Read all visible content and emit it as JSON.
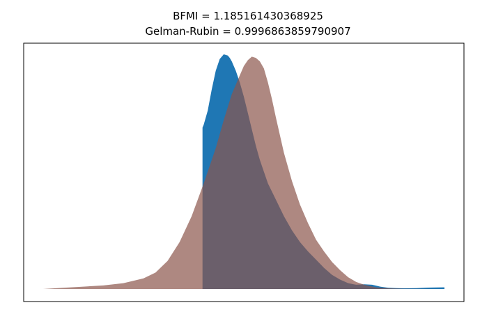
{
  "chart_data": {
    "type": "area",
    "title_lines": [
      "BFMI = 1.185161430368925",
      "Gelman-Rubin = 0.9996863859790907"
    ],
    "xlabel": "",
    "ylabel": "",
    "axis_ticks_visible": false,
    "grid": false,
    "legend": "none",
    "xlim": [
      0,
      1
    ],
    "ylim": [
      0,
      1
    ],
    "series": [
      {
        "color": "#1f77b4",
        "opacity": 1.0,
        "x": [
          0.397,
          0.397,
          0.4,
          0.41,
          0.42,
          0.43,
          0.44,
          0.45,
          0.46,
          0.465,
          0.47,
          0.48,
          0.49,
          0.5,
          0.51,
          0.52,
          0.53,
          0.54,
          0.56,
          0.58,
          0.6,
          0.62,
          0.64,
          0.66,
          0.68,
          0.7,
          0.72,
          0.74,
          0.76,
          0.78,
          0.8,
          0.82,
          0.84,
          0.86,
          0.88,
          0.9,
          0.93,
          0.96,
          1.0,
          1.0
        ],
        "y": [
          0.0,
          0.688,
          0.7,
          0.76,
          0.85,
          0.93,
          0.98,
          1.0,
          0.995,
          0.985,
          0.97,
          0.93,
          0.88,
          0.82,
          0.75,
          0.68,
          0.61,
          0.55,
          0.45,
          0.38,
          0.31,
          0.25,
          0.2,
          0.16,
          0.125,
          0.09,
          0.06,
          0.04,
          0.025,
          0.018,
          0.02,
          0.018,
          0.01,
          0.005,
          0.004,
          0.003,
          0.004,
          0.006,
          0.007,
          0.0
        ]
      },
      {
        "color": "#8c564b",
        "opacity": 0.7,
        "x": [
          0.0,
          0.05,
          0.1,
          0.15,
          0.2,
          0.25,
          0.28,
          0.31,
          0.34,
          0.37,
          0.4,
          0.43,
          0.45,
          0.47,
          0.49,
          0.5,
          0.51,
          0.52,
          0.53,
          0.54,
          0.55,
          0.56,
          0.57,
          0.58,
          0.6,
          0.62,
          0.64,
          0.66,
          0.68,
          0.7,
          0.72,
          0.74,
          0.76,
          0.78,
          0.8,
          0.83,
          0.86,
          0.9,
          1.0
        ],
        "y": [
          0.0,
          0.005,
          0.01,
          0.015,
          0.025,
          0.045,
          0.07,
          0.12,
          0.2,
          0.31,
          0.45,
          0.6,
          0.72,
          0.83,
          0.91,
          0.95,
          0.975,
          0.99,
          0.985,
          0.97,
          0.94,
          0.88,
          0.81,
          0.73,
          0.58,
          0.46,
          0.36,
          0.28,
          0.21,
          0.16,
          0.115,
          0.08,
          0.05,
          0.03,
          0.018,
          0.007,
          0.003,
          0.001,
          0.0
        ]
      }
    ]
  }
}
